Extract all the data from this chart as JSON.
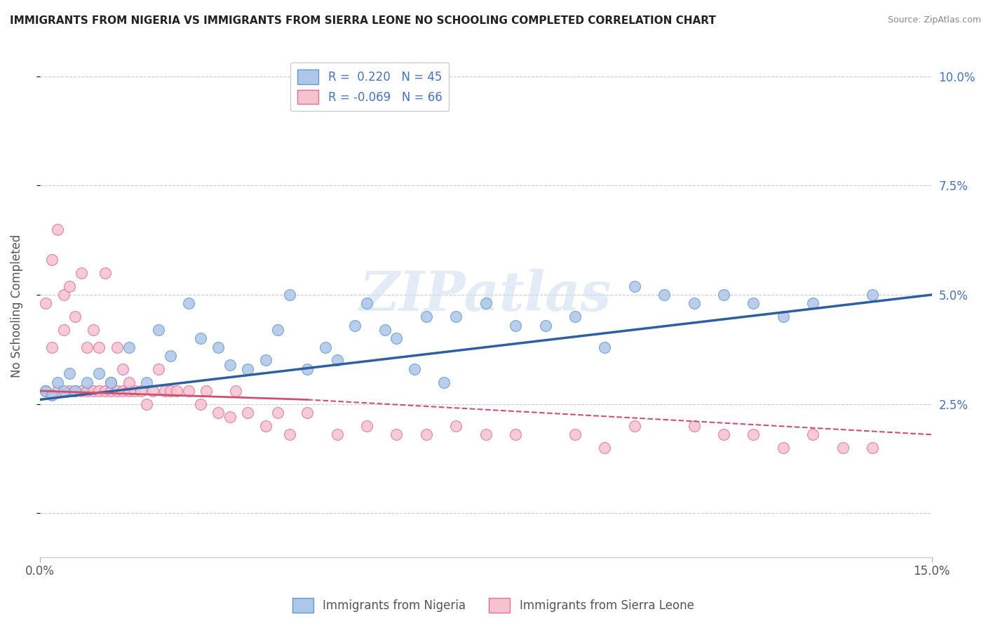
{
  "title": "IMMIGRANTS FROM NIGERIA VS IMMIGRANTS FROM SIERRA LEONE NO SCHOOLING COMPLETED CORRELATION CHART",
  "source": "Source: ZipAtlas.com",
  "ylabel": "No Schooling Completed",
  "xlim": [
    0.0,
    0.15
  ],
  "ylim": [
    -0.01,
    0.105
  ],
  "ytick_values": [
    0.0,
    0.025,
    0.05,
    0.075,
    0.1
  ],
  "ytick_labels": [
    "",
    "2.5%",
    "5.0%",
    "7.5%",
    "10.0%"
  ],
  "xtick_values": [
    0.0,
    0.15
  ],
  "xtick_labels": [
    "0.0%",
    "15.0%"
  ],
  "nigeria_color": "#aec6e8",
  "nigeria_edge_color": "#5b9bd5",
  "sierra_leone_color": "#f5c2d0",
  "sierra_leone_edge_color": "#e07090",
  "nigeria_line_color": "#2e5fa3",
  "sierra_leone_line_color": "#d05070",
  "legend_nigeria_label": "R =  0.220   N = 45",
  "legend_sierra_label": "R = -0.069   N = 66",
  "bottom_legend_nigeria": "Immigrants from Nigeria",
  "bottom_legend_sierra": "Immigrants from Sierra Leone",
  "nigeria_line": {
    "x0": 0.0,
    "y0": 0.026,
    "x1": 0.15,
    "y1": 0.05
  },
  "sierra_line_solid": {
    "x0": 0.0,
    "y0": 0.028,
    "x1": 0.045,
    "y1": 0.026
  },
  "sierra_line_dashed": {
    "x0": 0.045,
    "y0": 0.026,
    "x1": 0.15,
    "y1": 0.018
  },
  "nigeria_scatter_x": [
    0.001,
    0.002,
    0.003,
    0.004,
    0.005,
    0.006,
    0.008,
    0.01,
    0.012,
    0.015,
    0.018,
    0.02,
    0.022,
    0.025,
    0.027,
    0.03,
    0.032,
    0.035,
    0.038,
    0.04,
    0.042,
    0.045,
    0.048,
    0.05,
    0.053,
    0.055,
    0.058,
    0.06,
    0.063,
    0.065,
    0.068,
    0.07,
    0.075,
    0.08,
    0.085,
    0.09,
    0.095,
    0.1,
    0.105,
    0.11,
    0.115,
    0.12,
    0.125,
    0.13,
    0.14
  ],
  "nigeria_scatter_y": [
    0.028,
    0.027,
    0.03,
    0.028,
    0.032,
    0.028,
    0.03,
    0.032,
    0.03,
    0.038,
    0.03,
    0.042,
    0.036,
    0.048,
    0.04,
    0.038,
    0.034,
    0.033,
    0.035,
    0.042,
    0.05,
    0.033,
    0.038,
    0.035,
    0.043,
    0.048,
    0.042,
    0.04,
    0.033,
    0.045,
    0.03,
    0.045,
    0.048,
    0.043,
    0.043,
    0.045,
    0.038,
    0.052,
    0.05,
    0.048,
    0.05,
    0.048,
    0.045,
    0.048,
    0.05
  ],
  "sierra_scatter_x": [
    0.001,
    0.001,
    0.002,
    0.002,
    0.003,
    0.003,
    0.004,
    0.004,
    0.005,
    0.005,
    0.006,
    0.006,
    0.007,
    0.007,
    0.008,
    0.008,
    0.009,
    0.009,
    0.01,
    0.01,
    0.011,
    0.011,
    0.012,
    0.012,
    0.013,
    0.013,
    0.014,
    0.014,
    0.015,
    0.015,
    0.016,
    0.017,
    0.018,
    0.019,
    0.02,
    0.021,
    0.022,
    0.023,
    0.025,
    0.027,
    0.028,
    0.03,
    0.032,
    0.033,
    0.035,
    0.038,
    0.04,
    0.042,
    0.045,
    0.05,
    0.055,
    0.06,
    0.065,
    0.07,
    0.075,
    0.08,
    0.09,
    0.095,
    0.1,
    0.11,
    0.115,
    0.12,
    0.125,
    0.13,
    0.135,
    0.14
  ],
  "sierra_scatter_y": [
    0.028,
    0.048,
    0.038,
    0.058,
    0.028,
    0.065,
    0.042,
    0.05,
    0.028,
    0.052,
    0.028,
    0.045,
    0.028,
    0.055,
    0.028,
    0.038,
    0.028,
    0.042,
    0.028,
    0.038,
    0.028,
    0.055,
    0.028,
    0.03,
    0.028,
    0.038,
    0.028,
    0.033,
    0.028,
    0.03,
    0.028,
    0.028,
    0.025,
    0.028,
    0.033,
    0.028,
    0.028,
    0.028,
    0.028,
    0.025,
    0.028,
    0.023,
    0.022,
    0.028,
    0.023,
    0.02,
    0.023,
    0.018,
    0.023,
    0.018,
    0.02,
    0.018,
    0.018,
    0.02,
    0.018,
    0.018,
    0.018,
    0.015,
    0.02,
    0.02,
    0.018,
    0.018,
    0.015,
    0.018,
    0.015,
    0.015
  ],
  "watermark_text": "ZIPatlas",
  "background_color": "#ffffff",
  "grid_color": "#cccccc"
}
